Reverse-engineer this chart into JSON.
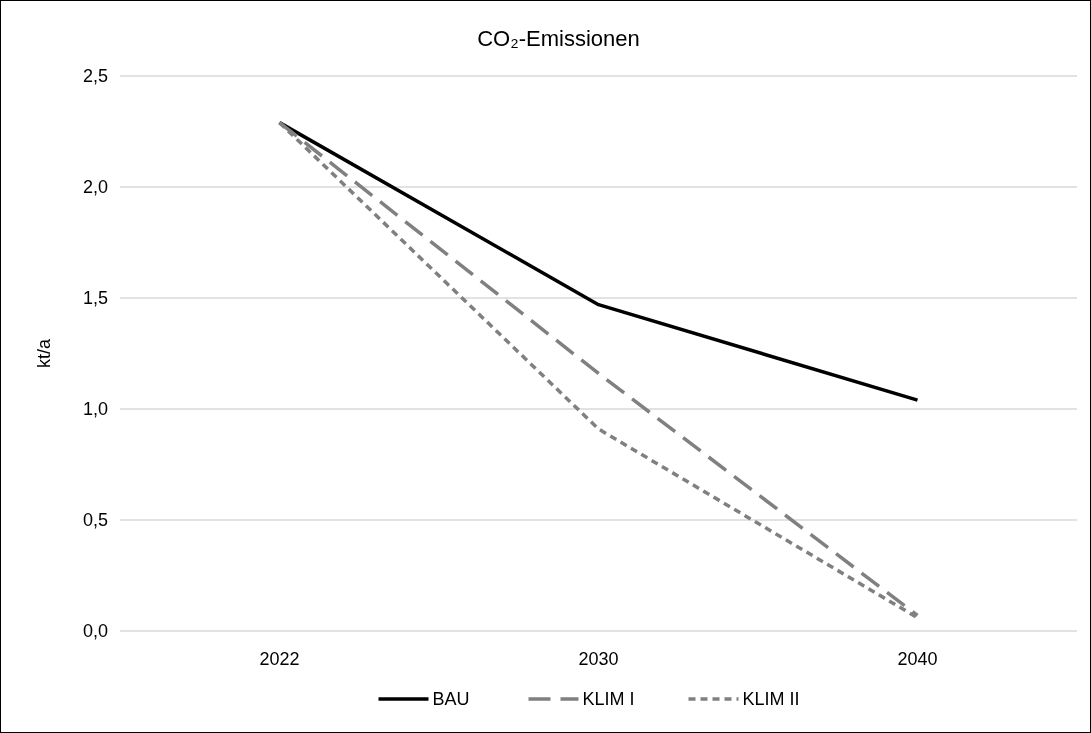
{
  "chart_data": {
    "type": "line",
    "title": "CO₂-Emissionen",
    "ylabel": "kt/a",
    "categories": [
      "2022",
      "2030",
      "2040"
    ],
    "series": [
      {
        "name": "BAU",
        "color": "#000000",
        "line_style": "solid",
        "values": [
          2.29,
          1.47,
          1.04
        ]
      },
      {
        "name": "KLIM I",
        "color": "#808080",
        "line_style": "dashed",
        "values": [
          2.29,
          1.16,
          0.07
        ]
      },
      {
        "name": "KLIM II",
        "color": "#808080",
        "line_style": "dotted",
        "values": [
          2.29,
          0.91,
          0.06
        ]
      }
    ],
    "ylim": [
      0,
      2.5
    ],
    "yticks": [
      {
        "value": 0,
        "label": "0,0"
      },
      {
        "value": 0.5,
        "label": "0,5"
      },
      {
        "value": 1,
        "label": "1,0"
      },
      {
        "value": 1.5,
        "label": "1,5"
      },
      {
        "value": 2,
        "label": "2,0"
      },
      {
        "value": 2.5,
        "label": "2,5"
      }
    ],
    "grid": "y",
    "legend": "bottom",
    "marker": "none"
  }
}
